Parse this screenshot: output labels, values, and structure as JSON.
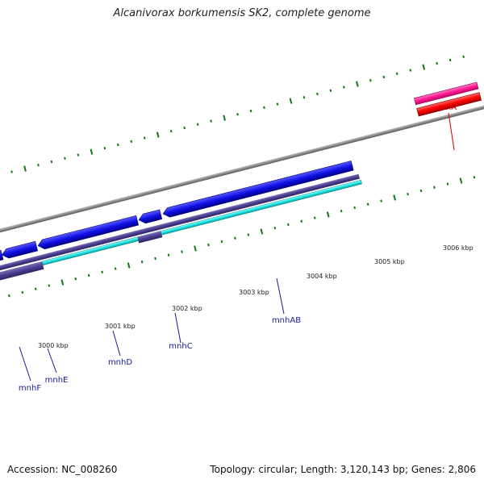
{
  "title": "Alcanivorax borkumensis SK2, complete genome",
  "footer": {
    "accession": "Accession: NC_008260",
    "summary": "Topology: circular; Length: 3,120,143 bp; Genes: 2,806"
  },
  "colors": {
    "backbone": "#888888",
    "forward_cds": "#ff1493",
    "forward_gene": "#ff0000",
    "reverse_cds": "#1010e6",
    "reverse_gene": "#4b3d8f",
    "reverse_misc": "#1fe3e3",
    "ticks": "#117711",
    "label_red": "#cc0000",
    "label_blue": "#1a1a99"
  },
  "scale_labels": [
    "3000 kbp",
    "3001 kbp",
    "3002 kbp",
    "3003 kbp",
    "3004 kbp",
    "3005 kbp",
    "3006 kbp"
  ],
  "gene_labels": [
    {
      "name": "polA",
      "color": "red"
    },
    {
      "name": "mnhF",
      "color": "blue"
    },
    {
      "name": "mnhE",
      "color": "blue"
    },
    {
      "name": "mnhD",
      "color": "blue"
    },
    {
      "name": "mnhC",
      "color": "blue"
    },
    {
      "name": "mnhAB",
      "color": "blue"
    }
  ]
}
